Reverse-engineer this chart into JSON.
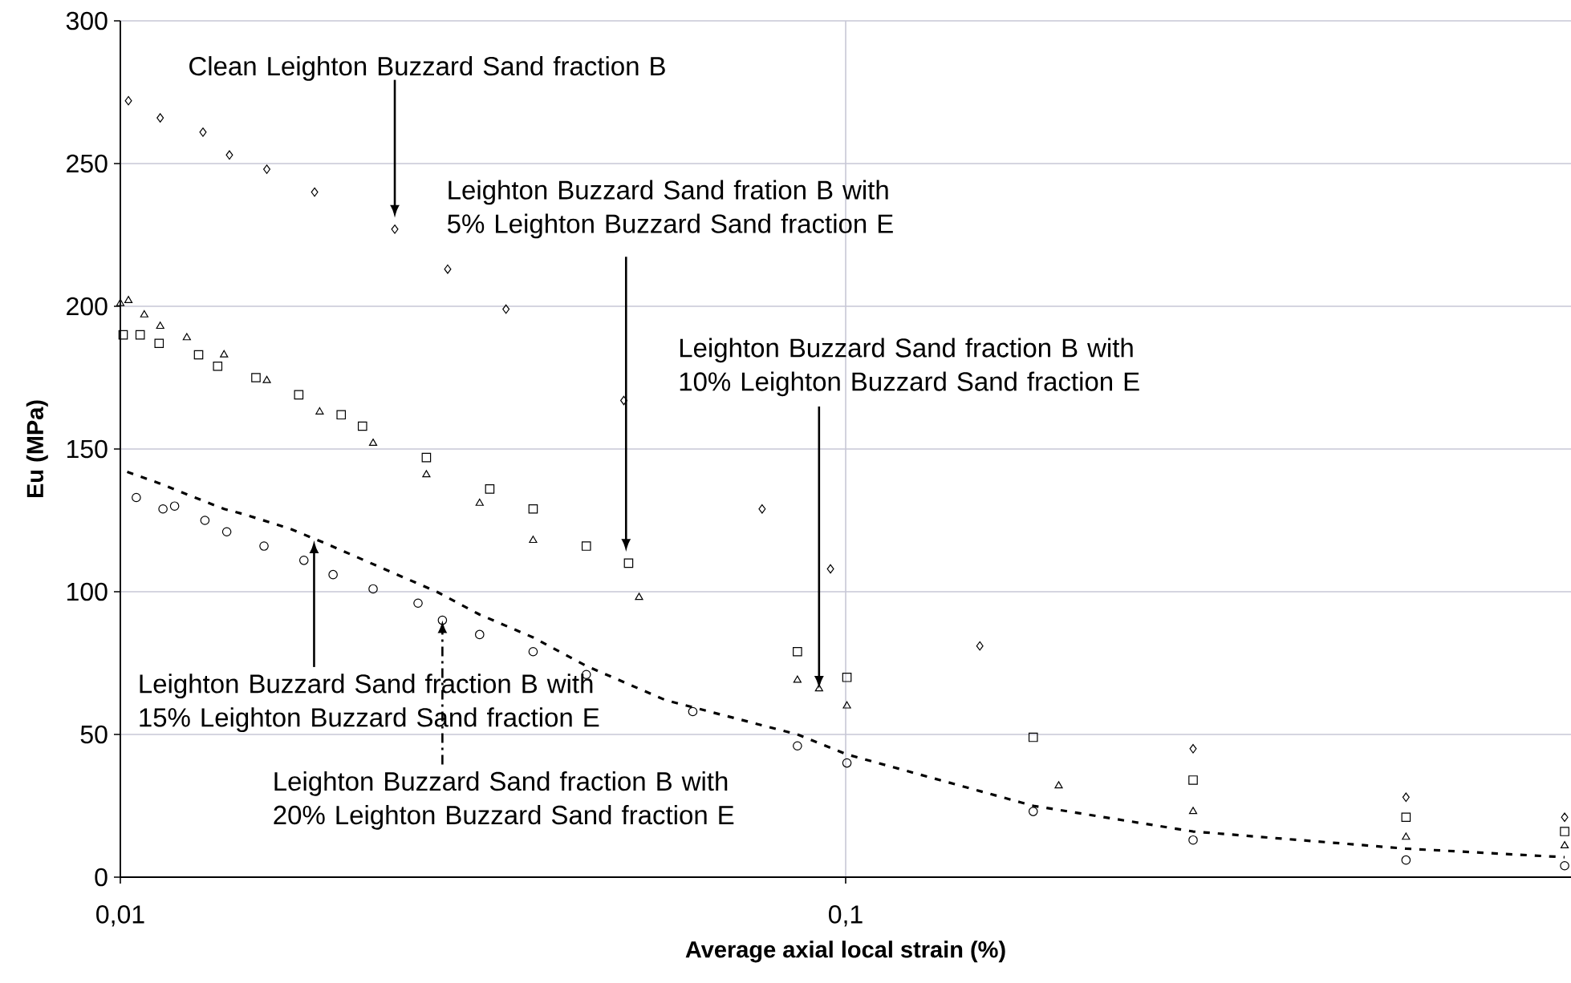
{
  "chart_data": {
    "type": "scatter",
    "xlabel": "Average axial local strain (%)",
    "ylabel": "Eu (MPa)",
    "log": "x",
    "xlim": [
      0.01,
      1
    ],
    "xticks": [
      {
        "value": 0.01,
        "label": "0,01"
      },
      {
        "value": 0.1,
        "label": "0,1"
      }
    ],
    "ylim": [
      0,
      300
    ],
    "yticks": [
      0,
      50,
      100,
      150,
      200,
      250,
      300
    ],
    "grid": true,
    "annotations": [
      {
        "text": "Clean Leighton Buzzard Sand fraction B",
        "x": 0.0239,
        "y": 231
      },
      {
        "text": "Leighton Buzzard Sand fration B with 5% Leighton Buzzard Sand fraction E",
        "x": 0.0498,
        "y": 114
      },
      {
        "text": "Leighton Buzzard Sand fraction B with 10% Leighton Buzzard Sand fraction E",
        "x": 0.0919,
        "y": 66
      },
      {
        "text": "Leighton Buzzard Sand fraction B with 15% Leighton Buzzard Sand fraction E",
        "x": 0.0185,
        "y": 118
      },
      {
        "text": "Leighton Buzzard Sand fraction B with 20% Leighton Buzzard Sand fraction E",
        "x": 0.0278,
        "y": 90
      }
    ],
    "series": [
      {
        "color": "#000000",
        "marker": "diamond",
        "x": [
          0.01026,
          0.01135,
          0.013,
          0.01414,
          0.01592,
          0.01853,
          0.0239,
          0.02827,
          0.03402,
          0.04945,
          0.07672,
          0.0953,
          0.1531,
          0.3013,
          0.5923,
          0.98
        ],
        "values": [
          272,
          266,
          261,
          253,
          248,
          240,
          227,
          213,
          199,
          167,
          129,
          108,
          81,
          45,
          28,
          21
        ]
      },
      {
        "color": "#000000",
        "marker": "square",
        "x": [
          0.01009,
          0.01065,
          0.01131,
          0.01282,
          0.01362,
          0.01538,
          0.01762,
          0.02016,
          0.02157,
          0.02642,
          0.03231,
          0.03708,
          0.0439,
          0.0502,
          0.0858,
          0.1004,
          0.1814,
          0.3013,
          0.5923,
          0.98
        ],
        "values": [
          190,
          190,
          187,
          183,
          179,
          175,
          169,
          162,
          158,
          147,
          136,
          129,
          116,
          110,
          79,
          70,
          49,
          34,
          21,
          16
        ]
      },
      {
        "color": "#000000",
        "marker": "triangle",
        "x": [
          0.01,
          0.01026,
          0.01079,
          0.01135,
          0.01235,
          0.0139,
          0.01592,
          0.01883,
          0.02231,
          0.02642,
          0.03129,
          0.03708,
          0.0519,
          0.0858,
          0.0919,
          0.1004,
          0.1967,
          0.3013,
          0.5923,
          0.98
        ],
        "values": [
          201,
          202,
          197,
          193,
          189,
          183,
          174,
          163,
          152,
          141,
          131,
          118,
          98,
          69,
          66,
          60,
          32,
          23,
          14,
          11
        ]
      },
      {
        "color": "#000000",
        "type": "line",
        "line_style": "dashed",
        "marker": "none",
        "x": [
          0.01022,
          0.01131,
          0.01267,
          0.0139,
          0.01487,
          0.01716,
          0.01916,
          0.02309,
          0.0273,
          0.03129,
          0.03708,
          0.0439,
          0.05647,
          0.0858,
          0.1004,
          0.1814,
          0.3013,
          0.5923,
          0.98
        ],
        "values": [
          142,
          138,
          133,
          129,
          127,
          122,
          117,
          108,
          100,
          92,
          84,
          74,
          62,
          50,
          43,
          25,
          16,
          10,
          7
        ]
      },
      {
        "color": "#000000",
        "marker": "circle",
        "x": [
          0.01052,
          0.01145,
          0.01188,
          0.01308,
          0.01402,
          0.01578,
          0.01791,
          0.01965,
          0.02231,
          0.02573,
          0.0278,
          0.03129,
          0.03708,
          0.0439,
          0.06155,
          0.0858,
          0.1004,
          0.1814,
          0.3013,
          0.5923,
          0.98
        ],
        "values": [
          133,
          129,
          130,
          125,
          121,
          116,
          111,
          106,
          101,
          96,
          90,
          85,
          79,
          71,
          58,
          46,
          40,
          23,
          13,
          6,
          4
        ]
      }
    ]
  }
}
